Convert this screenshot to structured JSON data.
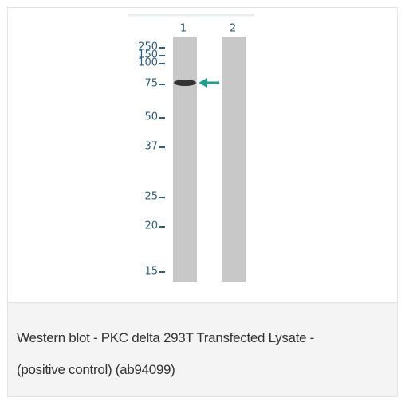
{
  "figure": {
    "lanes": [
      "1",
      "2"
    ],
    "markers": [
      250,
      150,
      100,
      75,
      50,
      37,
      25,
      20,
      15
    ]
  },
  "caption": {
    "lines": [
      "Western blot - PKC delta 293T Transfected Lysate -",
      "(positive control) (ab94099)"
    ]
  }
}
